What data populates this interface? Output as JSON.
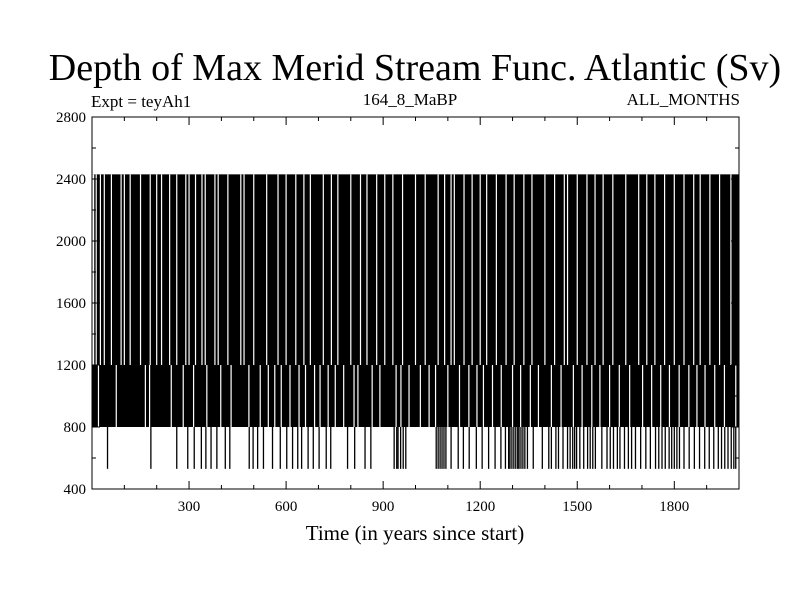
{
  "chart_data": {
    "type": "line",
    "title": "Depth of Max Merid Stream Func. Atlantic (Sv)",
    "subtitle_left": "Expt = teyAh1",
    "subtitle_center": "164_8_MaBP",
    "subtitle_right": "ALL_MONTHS",
    "xlabel": "Time (in years since start)",
    "ylabel": "",
    "xlim": [
      0,
      2000
    ],
    "ylim": [
      400,
      2800
    ],
    "x_ticks": [
      300,
      600,
      900,
      1200,
      1500,
      1800
    ],
    "y_ticks": [
      400,
      800,
      1200,
      1600,
      2000,
      2400,
      2800
    ],
    "grid": false,
    "series": [
      {
        "color": "#000000",
        "depth_levels": [
          530,
          800,
          1200,
          2430
        ],
        "gaps_upper": [
          2,
          5,
          13,
          26,
          38,
          60,
          90,
          100,
          118,
          150,
          180,
          200,
          215,
          240,
          262,
          290,
          300,
          320,
          340,
          350,
          380,
          390,
          420,
          460,
          470,
          500,
          540,
          575,
          600,
          630,
          655,
          675,
          715,
          740,
          760,
          800,
          830,
          850,
          880,
          905,
          930,
          960,
          1000,
          1030,
          1070,
          1090,
          1110,
          1120,
          1150,
          1175,
          1200,
          1220,
          1250,
          1280,
          1305,
          1335,
          1360,
          1400,
          1430,
          1460,
          1470,
          1500,
          1530,
          1555,
          1580,
          1610,
          1650,
          1690,
          1715,
          1740,
          1770,
          1800,
          1830,
          1860,
          1880,
          1910,
          1940,
          1975
        ],
        "gaps_middle": [
          20,
          75,
          165,
          178,
          245,
          282,
          314,
          355,
          398,
          430,
          485,
          520,
          545,
          565,
          585,
          612,
          640,
          660,
          688,
          705,
          730,
          752,
          778,
          810,
          822,
          866,
          890,
          940,
          955,
          980,
          1015,
          1042,
          1062,
          1100,
          1136,
          1165,
          1190,
          1210,
          1238,
          1265,
          1300,
          1325,
          1355,
          1380,
          1420,
          1450,
          1488,
          1515,
          1545,
          1570,
          1600,
          1630,
          1662,
          1702,
          1730,
          1758,
          1785,
          1815,
          1845,
          1870,
          1895,
          1925,
          1955,
          1990
        ],
        "spikes_low": [
          48,
          182,
          262,
          296,
          316,
          338,
          352,
          368,
          386,
          412,
          426,
          486,
          498,
          512,
          530,
          558,
          582,
          602,
          620,
          636,
          648,
          668,
          684,
          702,
          724,
          738,
          790,
          812,
          844,
          862,
          934,
          942,
          946,
          954,
          962,
          970,
          1064,
          1070,
          1076,
          1082,
          1088,
          1094,
          1110,
          1132,
          1148,
          1166,
          1188,
          1206,
          1226,
          1246,
          1264,
          1278,
          1288,
          1292,
          1298,
          1304,
          1310,
          1316,
          1320,
          1326,
          1332,
          1338,
          1346,
          1364,
          1392,
          1412,
          1420,
          1434,
          1442,
          1456,
          1470,
          1478,
          1486,
          1492,
          1498,
          1508,
          1520,
          1532,
          1540,
          1548,
          1556,
          1576,
          1592,
          1602,
          1612,
          1624,
          1632,
          1646,
          1658,
          1668,
          1680,
          1696,
          1712,
          1726,
          1742,
          1752,
          1762,
          1772,
          1784,
          1792,
          1800,
          1808,
          1816,
          1830,
          1846,
          1862,
          1878,
          1894,
          1908,
          1922,
          1936,
          1946,
          1956,
          1966,
          1976,
          1984,
          1990
        ]
      }
    ]
  }
}
